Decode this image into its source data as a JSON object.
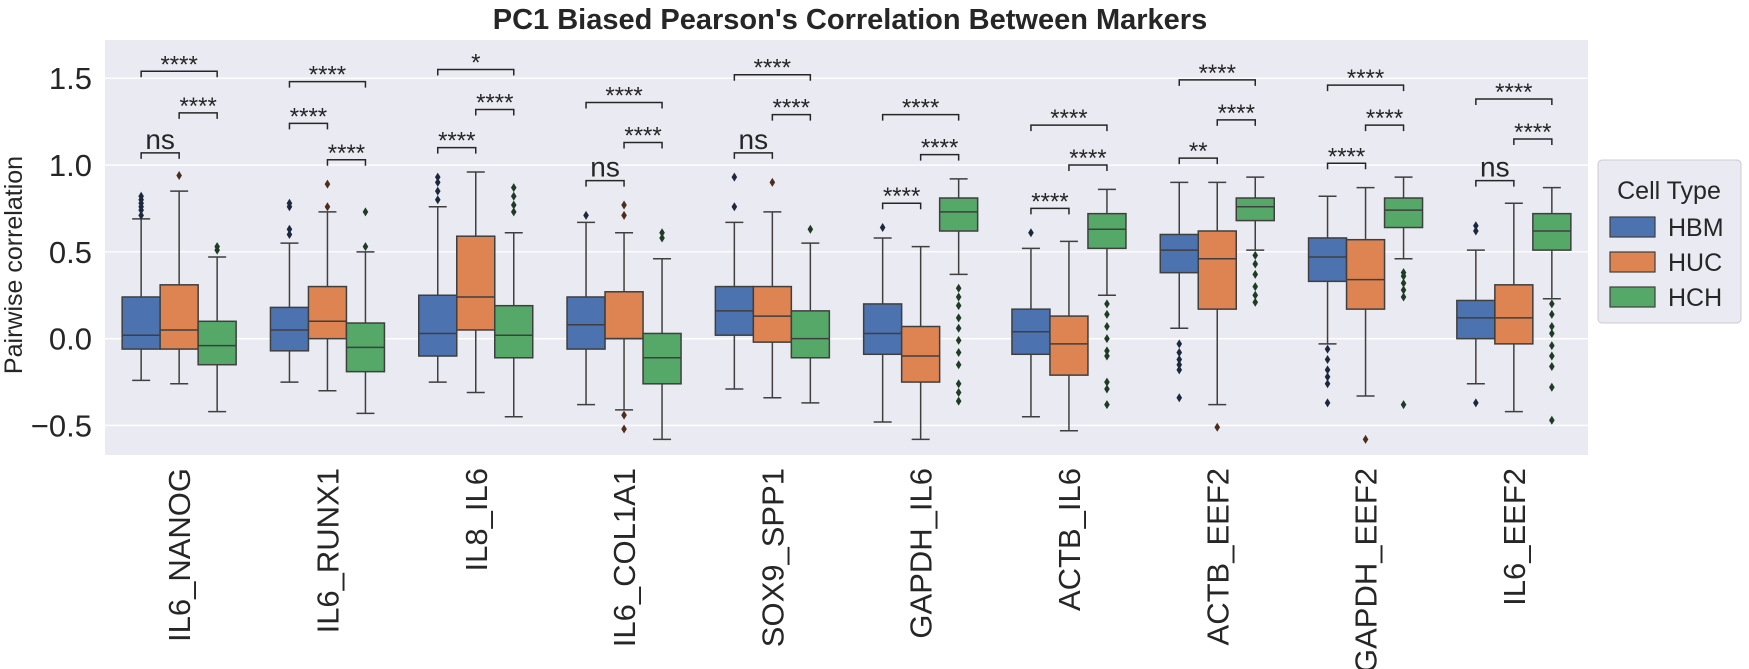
{
  "chart_data": {
    "type": "box",
    "title": "PC1 Biased Pearson's Correlation Between Markers",
    "xlabel": "",
    "ylabel": "Pairwise correlation",
    "ylim": [
      -0.67,
      1.72
    ],
    "yticks": [
      -0.5,
      0.0,
      0.5,
      1.0,
      1.5
    ],
    "ytick_labels": [
      "−0.5",
      "0.0",
      "0.5",
      "1.0",
      "1.5"
    ],
    "grid": true,
    "background": "#eaeaf2",
    "legend": {
      "title": "Cell Type",
      "placement": "right"
    },
    "categories": [
      "IL6_NANOG",
      "IL6_RUNX1",
      "IL8_IL6",
      "IL6_COL1A1",
      "SOX9_SPP1",
      "GAPDH_IL6",
      "ACTB_IL6",
      "ACTB_EEF2",
      "GAPDH_EEF2",
      "IL6_EEF2"
    ],
    "series": [
      {
        "name": "HBM",
        "color": "#4c72b0",
        "boxes": [
          {
            "q1": -0.06,
            "median": 0.02,
            "q3": 0.24,
            "whislo": -0.24,
            "whishi": 0.69,
            "fliers": [
              0.71,
              0.74,
              0.76,
              0.78,
              0.8,
              0.82
            ]
          },
          {
            "q1": -0.07,
            "median": 0.05,
            "q3": 0.18,
            "whislo": -0.25,
            "whishi": 0.55,
            "fliers": [
              0.6,
              0.63,
              0.76,
              0.78
            ]
          },
          {
            "q1": -0.1,
            "median": 0.03,
            "q3": 0.25,
            "whislo": -0.25,
            "whishi": 0.76,
            "fliers": [
              0.8,
              0.85,
              0.9,
              0.93
            ]
          },
          {
            "q1": -0.06,
            "median": 0.08,
            "q3": 0.24,
            "whislo": -0.38,
            "whishi": 0.67,
            "fliers": [
              0.71
            ]
          },
          {
            "q1": 0.02,
            "median": 0.16,
            "q3": 0.3,
            "whislo": -0.29,
            "whishi": 0.67,
            "fliers": [
              0.76,
              0.93
            ]
          },
          {
            "q1": -0.09,
            "median": 0.03,
            "q3": 0.2,
            "whislo": -0.48,
            "whishi": 0.58,
            "fliers": [
              0.64
            ]
          },
          {
            "q1": -0.09,
            "median": 0.04,
            "q3": 0.17,
            "whislo": -0.45,
            "whishi": 0.52,
            "fliers": [
              0.61
            ]
          },
          {
            "q1": 0.38,
            "median": 0.51,
            "q3": 0.6,
            "whislo": 0.06,
            "whishi": 0.9,
            "fliers": [
              -0.03,
              -0.08,
              -0.12,
              -0.15,
              -0.18,
              -0.34
            ]
          },
          {
            "q1": 0.33,
            "median": 0.47,
            "q3": 0.58,
            "whislo": -0.03,
            "whishi": 0.82,
            "fliers": [
              -0.06,
              -0.12,
              -0.18,
              -0.22,
              -0.26,
              -0.37
            ]
          },
          {
            "q1": 0.0,
            "median": 0.12,
            "q3": 0.22,
            "whislo": -0.26,
            "whishi": 0.51,
            "fliers": [
              0.62,
              0.65,
              -0.37
            ]
          }
        ]
      },
      {
        "name": "HUC",
        "color": "#dd8452",
        "boxes": [
          {
            "q1": -0.06,
            "median": 0.05,
            "q3": 0.31,
            "whislo": -0.26,
            "whishi": 0.85,
            "fliers": [
              0.94
            ]
          },
          {
            "q1": 0.0,
            "median": 0.1,
            "q3": 0.3,
            "whislo": -0.3,
            "whishi": 0.73,
            "fliers": [
              0.76,
              0.89
            ]
          },
          {
            "q1": 0.05,
            "median": 0.24,
            "q3": 0.59,
            "whislo": -0.31,
            "whishi": 0.96,
            "fliers": []
          },
          {
            "q1": 0.0,
            "median": 0.0,
            "q3": 0.27,
            "whislo": -0.41,
            "whishi": 0.61,
            "fliers": [
              0.71,
              0.77,
              -0.44,
              -0.52
            ]
          },
          {
            "q1": -0.02,
            "median": 0.13,
            "q3": 0.3,
            "whislo": -0.34,
            "whishi": 0.73,
            "fliers": [
              0.9
            ]
          },
          {
            "q1": -0.25,
            "median": -0.1,
            "q3": 0.07,
            "whislo": -0.58,
            "whishi": 0.53,
            "fliers": []
          },
          {
            "q1": -0.21,
            "median": -0.03,
            "q3": 0.13,
            "whislo": -0.53,
            "whishi": 0.56,
            "fliers": []
          },
          {
            "q1": 0.17,
            "median": 0.46,
            "q3": 0.62,
            "whislo": -0.38,
            "whishi": 0.9,
            "fliers": [
              -0.51
            ]
          },
          {
            "q1": 0.17,
            "median": 0.34,
            "q3": 0.57,
            "whislo": -0.33,
            "whishi": 0.87,
            "fliers": [
              -0.58
            ]
          },
          {
            "q1": -0.03,
            "median": 0.12,
            "q3": 0.31,
            "whislo": -0.42,
            "whishi": 0.78,
            "fliers": []
          }
        ]
      },
      {
        "name": "HCH",
        "color": "#55a868",
        "boxes": [
          {
            "q1": -0.15,
            "median": -0.04,
            "q3": 0.1,
            "whislo": -0.42,
            "whishi": 0.47,
            "fliers": [
              0.51,
              0.53
            ]
          },
          {
            "q1": -0.19,
            "median": -0.05,
            "q3": 0.09,
            "whislo": -0.43,
            "whishi": 0.5,
            "fliers": [
              0.53,
              0.73
            ]
          },
          {
            "q1": -0.11,
            "median": 0.02,
            "q3": 0.19,
            "whislo": -0.45,
            "whishi": 0.61,
            "fliers": [
              0.73,
              0.77,
              0.82,
              0.87
            ]
          },
          {
            "q1": -0.26,
            "median": -0.11,
            "q3": 0.03,
            "whislo": -0.58,
            "whishi": 0.46,
            "fliers": [
              0.58,
              0.61
            ]
          },
          {
            "q1": -0.11,
            "median": 0.0,
            "q3": 0.16,
            "whislo": -0.37,
            "whishi": 0.55,
            "fliers": [
              0.63
            ]
          },
          {
            "q1": 0.62,
            "median": 0.73,
            "q3": 0.81,
            "whislo": 0.37,
            "whishi": 0.92,
            "fliers": [
              0.29,
              0.24,
              0.19,
              0.12,
              0.06,
              -0.01,
              -0.08,
              -0.15,
              -0.26,
              -0.31,
              -0.36
            ]
          },
          {
            "q1": 0.52,
            "median": 0.63,
            "q3": 0.72,
            "whislo": 0.25,
            "whishi": 0.86,
            "fliers": [
              0.2,
              0.14,
              0.07,
              0.0,
              -0.07,
              -0.1,
              -0.25,
              -0.29,
              -0.38
            ]
          },
          {
            "q1": 0.68,
            "median": 0.76,
            "q3": 0.81,
            "whislo": 0.51,
            "whishi": 0.93,
            "fliers": [
              0.48,
              0.43,
              0.37,
              0.3,
              0.25,
              0.21
            ]
          },
          {
            "q1": 0.64,
            "median": 0.74,
            "q3": 0.81,
            "whislo": 0.46,
            "whishi": 0.93,
            "fliers": [
              0.38,
              0.36,
              0.32,
              0.28,
              0.24,
              -0.38
            ]
          },
          {
            "q1": 0.51,
            "median": 0.62,
            "q3": 0.72,
            "whislo": 0.23,
            "whishi": 0.87,
            "fliers": [
              0.2,
              0.14,
              0.07,
              0.03,
              -0.04,
              -0.1,
              -0.16,
              -0.28,
              -0.47
            ]
          }
        ]
      }
    ],
    "annotations": [
      [
        {
          "pair": [
            0,
            1
          ],
          "y": 1.07,
          "text": "ns"
        },
        {
          "pair": [
            1,
            2
          ],
          "y": 1.3,
          "text": "****"
        },
        {
          "pair": [
            0,
            2
          ],
          "y": 1.54,
          "text": "****"
        }
      ],
      [
        {
          "pair": [
            0,
            1
          ],
          "y": 1.24,
          "text": "****"
        },
        {
          "pair": [
            1,
            2
          ],
          "y": 1.03,
          "text": "****"
        },
        {
          "pair": [
            0,
            2
          ],
          "y": 1.48,
          "text": "****"
        }
      ],
      [
        {
          "pair": [
            0,
            1
          ],
          "y": 1.1,
          "text": "****"
        },
        {
          "pair": [
            1,
            2
          ],
          "y": 1.32,
          "text": "****"
        },
        {
          "pair": [
            0,
            2
          ],
          "y": 1.55,
          "text": "*"
        }
      ],
      [
        {
          "pair": [
            0,
            1
          ],
          "y": 0.91,
          "text": "ns"
        },
        {
          "pair": [
            1,
            2
          ],
          "y": 1.13,
          "text": "****"
        },
        {
          "pair": [
            0,
            2
          ],
          "y": 1.36,
          "text": "****"
        }
      ],
      [
        {
          "pair": [
            0,
            1
          ],
          "y": 1.07,
          "text": "ns"
        },
        {
          "pair": [
            1,
            2
          ],
          "y": 1.29,
          "text": "****"
        },
        {
          "pair": [
            0,
            2
          ],
          "y": 1.52,
          "text": "****"
        }
      ],
      [
        {
          "pair": [
            0,
            1
          ],
          "y": 0.78,
          "text": "****"
        },
        {
          "pair": [
            1,
            2
          ],
          "y": 1.06,
          "text": "****"
        },
        {
          "pair": [
            0,
            2
          ],
          "y": 1.29,
          "text": "****"
        }
      ],
      [
        {
          "pair": [
            0,
            1
          ],
          "y": 0.75,
          "text": "****"
        },
        {
          "pair": [
            1,
            2
          ],
          "y": 1.0,
          "text": "****"
        },
        {
          "pair": [
            0,
            2
          ],
          "y": 1.23,
          "text": "****"
        }
      ],
      [
        {
          "pair": [
            0,
            1
          ],
          "y": 1.04,
          "text": "**"
        },
        {
          "pair": [
            1,
            2
          ],
          "y": 1.26,
          "text": "****"
        },
        {
          "pair": [
            0,
            2
          ],
          "y": 1.49,
          "text": "****"
        }
      ],
      [
        {
          "pair": [
            0,
            1
          ],
          "y": 1.01,
          "text": "****"
        },
        {
          "pair": [
            1,
            2
          ],
          "y": 1.23,
          "text": "****"
        },
        {
          "pair": [
            0,
            2
          ],
          "y": 1.46,
          "text": "****"
        }
      ],
      [
        {
          "pair": [
            0,
            1
          ],
          "y": 0.91,
          "text": "ns"
        },
        {
          "pair": [
            1,
            2
          ],
          "y": 1.15,
          "text": "****"
        },
        {
          "pair": [
            0,
            2
          ],
          "y": 1.38,
          "text": "****"
        }
      ]
    ]
  }
}
